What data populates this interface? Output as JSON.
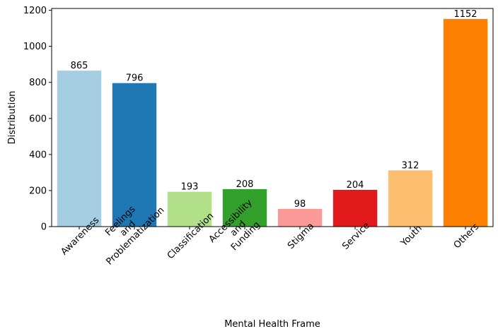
{
  "chart_data": {
    "type": "bar",
    "title": "",
    "xlabel": "Mental Health Frame",
    "ylabel": "Distribution",
    "ylim": [
      0,
      1210
    ],
    "yticks": [
      0,
      200,
      400,
      600,
      800,
      1000,
      1200
    ],
    "grid": false,
    "categories": [
      "Awareness",
      "Feelings\nand\nProblematization",
      "Classification",
      "Accessibility\nand\nFunding",
      "Stigma",
      "Service",
      "Youth",
      "Others"
    ],
    "values": [
      865,
      796,
      193,
      208,
      98,
      204,
      312,
      1152
    ],
    "colors": [
      "#a6cee3",
      "#1f78b4",
      "#b2df8a",
      "#33a02c",
      "#fb9a99",
      "#e31a1c",
      "#fdbf6f",
      "#ff7f00"
    ]
  }
}
